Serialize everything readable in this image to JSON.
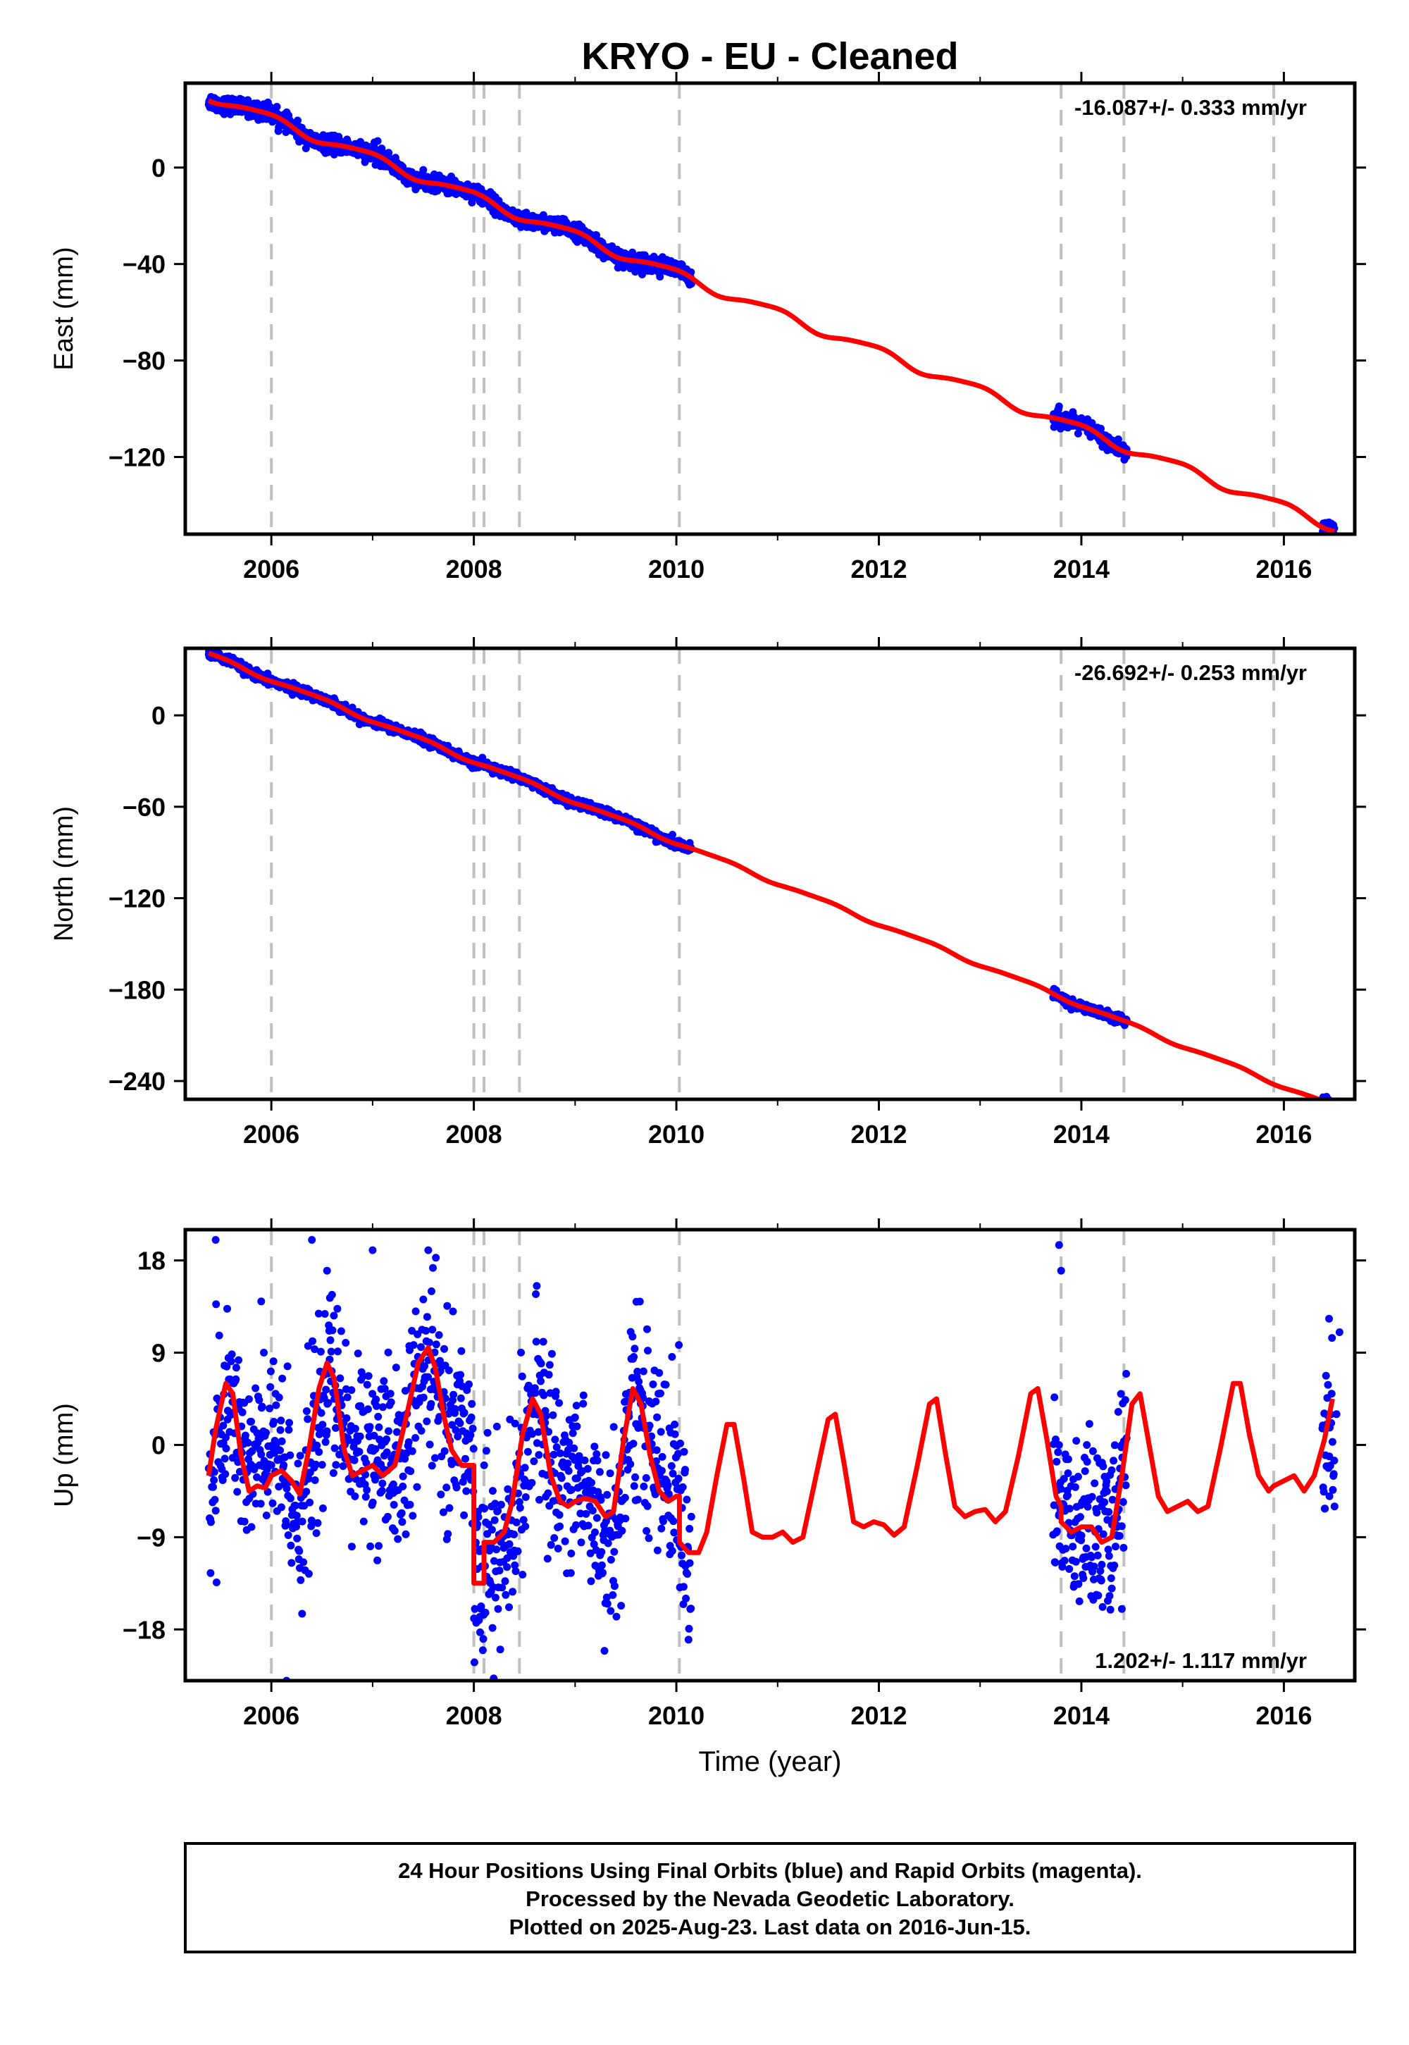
{
  "title": "KRYO  - EU - Cleaned",
  "colors": {
    "points": "#0000ff",
    "model": "#ff0000",
    "event_lines": "#c0c0c0",
    "frame": "#000000"
  },
  "footer": {
    "line1": "24 Hour Positions Using Final Orbits (blue) and Rapid Orbits (magenta).",
    "line2": "Processed by the Nevada Geodetic Laboratory.",
    "line3": "Plotted on 2025-Aug-23. Last data on 2016-Jun-15."
  },
  "chart_data": [
    {
      "type": "scatter",
      "name": "east",
      "ylabel": "East (mm)",
      "xlabel": "",
      "rate_text": "-16.087+/- 0.333 mm/yr",
      "rate_position": "top-right",
      "xlim": [
        2005.15,
        2016.7
      ],
      "ylim": [
        -152,
        35
      ],
      "xticks": [
        2006,
        2008,
        2010,
        2012,
        2014,
        2016
      ],
      "xtick_labels": [
        "2006",
        "2008",
        "2010",
        "2012",
        "2014",
        "2016"
      ],
      "yticks": [
        0,
        -40,
        -80,
        -120
      ],
      "ytick_labels": [
        "0",
        "−40",
        "−80",
        "−120"
      ],
      "event_lines": [
        2006.0,
        2008.0,
        2008.1,
        2008.45,
        2010.03,
        2013.8,
        2014.42,
        2015.9
      ],
      "model": {
        "rate": -16.087,
        "offset": 30,
        "start": 2005.38,
        "annual_amp": 2.0,
        "annual_phase": 0.3,
        "semiannual_amp": 0.4,
        "x_range": [
          2005.38,
          2016.5
        ]
      },
      "data_segments": [
        [
          2005.38,
          2010.15
        ],
        [
          2013.72,
          2014.45
        ],
        [
          2016.38,
          2016.5
        ]
      ],
      "data_points": 1900,
      "noise": 1.6,
      "outliers": [
        [
          2005.85,
          24
        ],
        [
          2007.05,
          11
        ],
        [
          2013.78,
          -99
        ]
      ]
    },
    {
      "type": "scatter",
      "name": "north",
      "ylabel": "North (mm)",
      "xlabel": "",
      "rate_text": "-26.692+/- 0.253 mm/yr",
      "rate_position": "top-right",
      "xlim": [
        2005.15,
        2016.7
      ],
      "ylim": [
        -252,
        44
      ],
      "xticks": [
        2006,
        2008,
        2010,
        2012,
        2014,
        2016
      ],
      "xtick_labels": [
        "2006",
        "2008",
        "2010",
        "2012",
        "2014",
        "2016"
      ],
      "yticks": [
        0,
        -60,
        -120,
        -180,
        -240
      ],
      "ytick_labels": [
        "0",
        "−60",
        "−120",
        "−180",
        "−240"
      ],
      "event_lines": [
        2006.0,
        2008.0,
        2008.1,
        2008.45,
        2010.03,
        2013.8,
        2014.42,
        2015.9
      ],
      "model": {
        "rate": -26.692,
        "offset": 40,
        "start": 2005.38,
        "annual_amp": 1.2,
        "annual_phase": 0.8,
        "semiannual_amp": 0.3,
        "x_range": [
          2005.38,
          2016.5
        ]
      },
      "data_segments": [
        [
          2005.38,
          2010.15
        ],
        [
          2013.72,
          2014.45
        ],
        [
          2016.38,
          2016.5
        ]
      ],
      "data_points": 1900,
      "noise": 1.4,
      "outliers": []
    },
    {
      "type": "scatter",
      "name": "up",
      "ylabel": "Up (mm)",
      "xlabel": "Time (year)",
      "rate_text": "1.202+/- 1.117 mm/yr",
      "rate_position": "bottom-right",
      "xlim": [
        2005.15,
        2016.7
      ],
      "ylim": [
        -23,
        21
      ],
      "xticks": [
        2006,
        2008,
        2010,
        2012,
        2014,
        2016
      ],
      "xtick_labels": [
        "2006",
        "2008",
        "2010",
        "2012",
        "2014",
        "2016"
      ],
      "yticks": [
        18,
        9,
        0,
        -9,
        -18
      ],
      "ytick_labels": [
        "18",
        "9",
        "0",
        "−9",
        "−18"
      ],
      "event_lines": [
        2006.0,
        2008.0,
        2008.1,
        2008.45,
        2010.03,
        2013.8,
        2014.42,
        2015.9
      ],
      "model_curve": [
        [
          2005.38,
          -3.0
        ],
        [
          2005.45,
          1.5
        ],
        [
          2005.55,
          6.0
        ],
        [
          2005.62,
          5.0
        ],
        [
          2005.7,
          -1.0
        ],
        [
          2005.78,
          -4.5
        ],
        [
          2005.86,
          -4.0
        ],
        [
          2005.94,
          -4.2
        ],
        [
          2006.0,
          -3.0
        ],
        [
          2006.1,
          -2.5
        ],
        [
          2006.2,
          -3.5
        ],
        [
          2006.28,
          -4.8
        ],
        [
          2006.37,
          -0.5
        ],
        [
          2006.47,
          5.5
        ],
        [
          2006.55,
          8.0
        ],
        [
          2006.62,
          6.5
        ],
        [
          2006.72,
          -0.5
        ],
        [
          2006.8,
          -3.0
        ],
        [
          2006.9,
          -2.5
        ],
        [
          2007.0,
          -2.0
        ],
        [
          2007.1,
          -3.0
        ],
        [
          2007.22,
          -2.0
        ],
        [
          2007.35,
          3.5
        ],
        [
          2007.45,
          8.0
        ],
        [
          2007.55,
          9.5
        ],
        [
          2007.62,
          7.5
        ],
        [
          2007.7,
          3.0
        ],
        [
          2007.78,
          -0.5
        ],
        [
          2007.88,
          -2.0
        ],
        [
          2008.0,
          -2.0
        ],
        [
          2008.0,
          -13.5
        ],
        [
          2008.1,
          -13.5
        ],
        [
          2008.1,
          -9.5
        ],
        [
          2008.2,
          -9.5
        ],
        [
          2008.3,
          -8.5
        ],
        [
          2008.38,
          -5.5
        ],
        [
          2008.48,
          1.0
        ],
        [
          2008.58,
          4.5
        ],
        [
          2008.66,
          3.0
        ],
        [
          2008.76,
          -3.0
        ],
        [
          2008.85,
          -5.5
        ],
        [
          2008.93,
          -6.0
        ],
        [
          2009.0,
          -5.5
        ],
        [
          2009.1,
          -5.2
        ],
        [
          2009.2,
          -5.5
        ],
        [
          2009.3,
          -7.0
        ],
        [
          2009.38,
          -6.5
        ],
        [
          2009.48,
          0.5
        ],
        [
          2009.57,
          5.5
        ],
        [
          2009.65,
          4.0
        ],
        [
          2009.74,
          -1.0
        ],
        [
          2009.83,
          -4.5
        ],
        [
          2009.92,
          -5.5
        ],
        [
          2010.0,
          -5.0
        ],
        [
          2010.03,
          -5.0
        ],
        [
          2010.03,
          -9.5
        ],
        [
          2010.12,
          -10.5
        ],
        [
          2010.22,
          -10.5
        ],
        [
          2010.3,
          -8.5
        ],
        [
          2010.4,
          -3.0
        ],
        [
          2010.5,
          2.0
        ],
        [
          2010.57,
          2.0
        ],
        [
          2010.66,
          -3.0
        ],
        [
          2010.75,
          -8.5
        ],
        [
          2010.85,
          -9.0
        ],
        [
          2010.95,
          -9.0
        ],
        [
          2011.05,
          -8.5
        ],
        [
          2011.15,
          -9.5
        ],
        [
          2011.25,
          -9.0
        ],
        [
          2011.38,
          -3.0
        ],
        [
          2011.5,
          2.5
        ],
        [
          2011.57,
          3.0
        ],
        [
          2011.66,
          -2.0
        ],
        [
          2011.75,
          -7.5
        ],
        [
          2011.85,
          -8.0
        ],
        [
          2011.95,
          -7.5
        ],
        [
          2012.05,
          -7.8
        ],
        [
          2012.15,
          -8.8
        ],
        [
          2012.25,
          -8.0
        ],
        [
          2012.38,
          -2.0
        ],
        [
          2012.5,
          4.0
        ],
        [
          2012.57,
          4.5
        ],
        [
          2012.66,
          -1.0
        ],
        [
          2012.75,
          -6.0
        ],
        [
          2012.85,
          -7.0
        ],
        [
          2012.95,
          -6.5
        ],
        [
          2013.05,
          -6.3
        ],
        [
          2013.15,
          -7.5
        ],
        [
          2013.25,
          -6.5
        ],
        [
          2013.38,
          -1.0
        ],
        [
          2013.5,
          5.0
        ],
        [
          2013.57,
          5.5
        ],
        [
          2013.66,
          0.5
        ],
        [
          2013.75,
          -5.0
        ],
        [
          2013.8,
          -6.0
        ],
        [
          2013.8,
          -7.5
        ],
        [
          2013.9,
          -8.5
        ],
        [
          2014.0,
          -8.0
        ],
        [
          2014.1,
          -8.0
        ],
        [
          2014.2,
          -9.5
        ],
        [
          2014.3,
          -9.0
        ],
        [
          2014.4,
          -3.0
        ],
        [
          2014.5,
          4.0
        ],
        [
          2014.58,
          5.0
        ],
        [
          2014.67,
          0.0
        ],
        [
          2014.76,
          -5.0
        ],
        [
          2014.85,
          -6.5
        ],
        [
          2014.95,
          -6.0
        ],
        [
          2015.05,
          -5.5
        ],
        [
          2015.15,
          -6.5
        ],
        [
          2015.25,
          -6.0
        ],
        [
          2015.38,
          0.0
        ],
        [
          2015.5,
          6.0
        ],
        [
          2015.57,
          6.0
        ],
        [
          2015.66,
          1.0
        ],
        [
          2015.75,
          -3.0
        ],
        [
          2015.85,
          -4.5
        ],
        [
          2015.9,
          -4.0
        ],
        [
          2016.0,
          -3.5
        ],
        [
          2016.1,
          -3.0
        ],
        [
          2016.2,
          -4.5
        ],
        [
          2016.3,
          -3.0
        ],
        [
          2016.4,
          0.5
        ],
        [
          2016.48,
          4.5
        ]
      ],
      "data_segments": [
        [
          2005.38,
          2010.15
        ],
        [
          2013.72,
          2014.45
        ],
        [
          2016.38,
          2016.5
        ]
      ],
      "data_points": 1300,
      "noise": 4.5,
      "outliers": [
        [
          2005.45,
          20
        ],
        [
          2005.9,
          14
        ],
        [
          2006.4,
          20
        ],
        [
          2006.55,
          17
        ],
        [
          2007.0,
          19
        ],
        [
          2007.55,
          19
        ],
        [
          2006.15,
          -23
        ],
        [
          2005.4,
          -12.5
        ],
        [
          2013.78,
          19.5
        ],
        [
          2013.8,
          17
        ],
        [
          2013.78,
          0
        ],
        [
          2014.2,
          -6
        ],
        [
          2014.35,
          -8
        ],
        [
          2014.4,
          0
        ],
        [
          2014.4,
          -16
        ],
        [
          2014.3,
          -14
        ],
        [
          2014.02,
          -13
        ],
        [
          2016.45,
          -5
        ],
        [
          2016.5,
          -6
        ],
        [
          2016.52,
          3
        ],
        [
          2016.55,
          11
        ]
      ]
    }
  ]
}
